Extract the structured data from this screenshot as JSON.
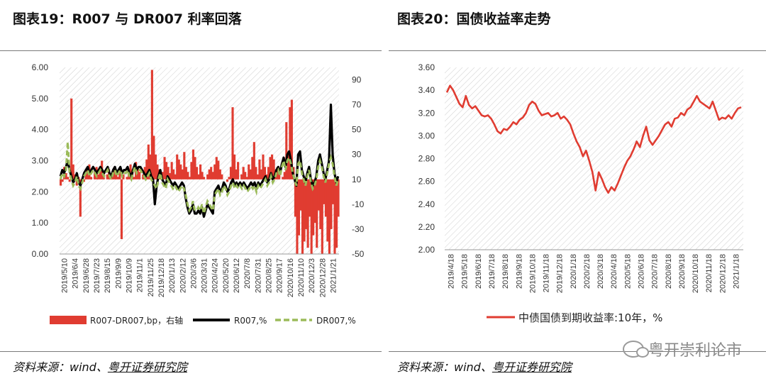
{
  "left_panel": {
    "title": "图表19：R007 与 DR007 利率回落",
    "source_prefix": "资料来源：wind、",
    "source_institution": "粤开证券研究院"
  },
  "right_panel": {
    "title": "图表20：国债收益率走势",
    "source_prefix": "资料来源：wind、",
    "source_institution": "粤开证券研究院"
  },
  "watermark": {
    "text": "粤开崇利论市",
    "icon": "wechat-icon"
  },
  "chart_data": [
    {
      "type": "line",
      "note": "combined chart: red bars on right axis, two lines on left axis",
      "x_ticks": [
        "2019/5/10",
        "2019/6/4",
        "2019/6/28",
        "2019/7/23",
        "2019/8/15",
        "2019/9/9",
        "2019/10/9",
        "2019/11/1",
        "2019/11/25",
        "2019/12/18",
        "2020/1/13",
        "2020/2/12",
        "2020/3/6",
        "2020/3/31",
        "2020/4/24",
        "2020/5/20",
        "2020/6/12",
        "2020/7/8",
        "2020/7/31",
        "2020/8/25",
        "2020/9/17",
        "2020/10/16",
        "2020/11/10",
        "2020/12/3",
        "2020/12/28",
        "2021/1/21"
      ],
      "y_left": {
        "ticks": [
          "0.00",
          "1.00",
          "2.00",
          "3.00",
          "4.00",
          "5.00",
          "6.00"
        ],
        "lim": [
          0,
          6
        ]
      },
      "y_right": {
        "ticks": [
          "-50",
          "-30",
          "-10",
          "10",
          "30",
          "50",
          "70",
          "90"
        ],
        "lim": [
          -50,
          100
        ]
      },
      "series": [
        {
          "name": "R007-DR007,bp，右轴",
          "axis": "right",
          "style": "bar",
          "color": "#E03C31",
          "values": [
            5,
            8,
            20,
            15,
            12,
            8,
            75,
            22,
            14,
            5,
            12,
            -20,
            10,
            8,
            15,
            18,
            22,
            12,
            10,
            16,
            20,
            14,
            18,
            25,
            16,
            10,
            14,
            18,
            12,
            16,
            20,
            15,
            12,
            18,
            -38,
            14,
            10,
            12,
            16,
            22,
            18,
            12,
            24,
            20,
            16,
            10,
            14,
            20,
            26,
            38,
            30,
            98,
            45,
            30,
            22,
            18,
            14,
            16,
            28,
            24,
            20,
            15,
            24,
            18,
            14,
            30,
            26,
            22,
            18,
            32,
            20,
            16,
            12,
            24,
            34,
            28,
            20,
            14,
            22,
            16,
            12,
            10,
            14,
            18,
            20,
            16,
            22,
            28,
            25,
            18,
            14,
            10,
            10,
            8,
            12,
            20,
            68,
            30,
            18,
            24,
            10,
            14,
            20,
            16,
            12,
            22,
            18,
            28,
            40,
            20,
            14,
            26,
            18,
            30,
            20,
            14,
            20,
            28,
            30,
            26,
            18,
            20,
            14,
            10,
            12,
            16,
            56,
            30,
            68,
            74,
            20,
            -20,
            -50,
            -35,
            -15,
            -50,
            -40,
            -30,
            -45,
            -20,
            -50,
            -35,
            -25,
            -45,
            -15,
            -30,
            -50,
            -10,
            -20,
            -40,
            -50,
            -30,
            -10,
            -50,
            -45,
            -20
          ]
        },
        {
          "name": "R007,%",
          "axis": "left",
          "style": "line",
          "color": "#000000",
          "values": [
            2.5,
            2.7,
            2.6,
            2.8,
            3.0,
            2.7,
            2.5,
            2.3,
            2.4,
            2.6,
            2.3,
            2.2,
            2.4,
            2.6,
            2.7,
            2.8,
            2.6,
            2.7,
            2.8,
            2.7,
            2.6,
            2.7,
            2.8,
            2.7,
            2.6,
            2.7,
            2.8,
            2.6,
            2.5,
            2.7,
            2.8,
            2.6,
            2.7,
            2.8,
            2.6,
            2.7,
            2.7,
            2.8,
            2.6,
            2.5,
            2.7,
            2.9,
            2.7,
            2.8,
            2.8,
            2.7,
            2.6,
            2.5,
            2.6,
            2.7,
            2.5,
            2.4,
            1.6,
            2.2,
            2.5,
            2.7,
            2.4,
            2.3,
            2.2,
            2.5,
            2.4,
            2.3,
            2.2,
            2.3,
            2.2,
            2.1,
            2.2,
            2.3,
            2.2,
            1.8,
            1.5,
            1.3,
            1.4,
            1.6,
            1.3,
            1.3,
            1.4,
            1.3,
            1.5,
            1.2,
            1.4,
            1.6,
            1.5,
            1.4,
            1.3,
            2.0,
            2.1,
            2.2,
            2.0,
            2.1,
            2.3,
            2.2,
            2.0,
            2.1,
            2.3,
            2.4,
            2.2,
            2.3,
            2.2,
            2.3,
            2.2,
            2.3,
            2.2,
            2.1,
            2.2,
            2.3,
            2.2,
            2.3,
            2.1,
            2.3,
            2.2,
            2.3,
            2.4,
            2.5,
            2.3,
            2.4,
            2.6,
            2.4,
            2.5,
            2.7,
            2.8,
            2.6,
            2.9,
            3.1,
            2.8,
            3.2,
            3.3,
            3.0,
            2.6,
            2.4,
            2.2,
            3.2,
            3.3,
            2.7,
            2.5,
            2.3,
            2.6,
            2.8,
            2.4,
            2.2,
            2.3,
            2.5,
            3.0,
            3.2,
            2.9,
            2.6,
            2.4,
            2.7,
            3.0,
            4.8,
            3.2,
            2.6,
            2.3,
            2.5
          ]
        },
        {
          "name": "DR007,%",
          "axis": "left",
          "style": "dashed",
          "color": "#9BBB59",
          "values": [
            2.4,
            2.6,
            2.5,
            2.7,
            3.6,
            2.6,
            2.4,
            2.2,
            2.3,
            2.5,
            2.2,
            2.1,
            2.3,
            2.5,
            2.6,
            2.7,
            2.5,
            2.6,
            2.7,
            2.6,
            2.5,
            2.6,
            2.7,
            2.6,
            2.5,
            2.6,
            2.7,
            2.5,
            2.4,
            2.6,
            2.7,
            2.5,
            2.6,
            2.7,
            2.5,
            2.6,
            2.6,
            2.7,
            2.5,
            2.4,
            2.6,
            2.8,
            2.6,
            2.7,
            2.7,
            2.6,
            2.5,
            2.4,
            2.5,
            2.6,
            2.4,
            2.3,
            2.2,
            2.1,
            2.4,
            2.6,
            2.3,
            2.2,
            2.1,
            2.4,
            2.3,
            2.2,
            2.1,
            2.2,
            2.1,
            2.0,
            2.1,
            2.2,
            2.1,
            1.9,
            1.6,
            1.4,
            1.5,
            1.7,
            1.4,
            1.4,
            1.5,
            1.4,
            1.6,
            1.3,
            1.5,
            1.7,
            1.6,
            1.5,
            1.4,
            1.9,
            2.0,
            2.1,
            1.9,
            2.0,
            2.2,
            2.1,
            1.9,
            2.0,
            2.2,
            2.3,
            2.1,
            2.2,
            2.1,
            2.2,
            2.1,
            2.2,
            2.1,
            2.0,
            2.1,
            2.2,
            2.1,
            2.2,
            2.0,
            2.2,
            2.1,
            2.2,
            2.3,
            2.4,
            2.2,
            2.3,
            2.5,
            2.3,
            2.4,
            2.6,
            2.7,
            2.5,
            2.8,
            3.0,
            2.7,
            3.0,
            3.1,
            2.9,
            2.6,
            2.4,
            2.2,
            2.9,
            3.0,
            2.6,
            2.4,
            2.2,
            2.5,
            2.7,
            2.3,
            2.1,
            2.2,
            2.4,
            2.8,
            3.0,
            2.8,
            2.5,
            2.3,
            2.6,
            2.9,
            3.1,
            2.9,
            2.5,
            2.2,
            2.4
          ]
        }
      ]
    },
    {
      "type": "line",
      "x_ticks": [
        "2019/4/18",
        "2019/5/18",
        "2019/6/18",
        "2019/7/18",
        "2019/8/18",
        "2019/9/18",
        "2019/10/18",
        "2019/11/18",
        "2019/12/18",
        "2020/1/18",
        "2020/2/18",
        "2020/3/18",
        "2020/4/18",
        "2020/5/18",
        "2020/6/18",
        "2020/7/18",
        "2020/8/18",
        "2020/9/18",
        "2020/10/18",
        "2020/11/18",
        "2020/12/18",
        "2021/1/18"
      ],
      "y": {
        "ticks": [
          "2.00",
          "2.20",
          "2.40",
          "2.60",
          "2.80",
          "3.00",
          "3.20",
          "3.40",
          "3.60"
        ],
        "lim": [
          2.0,
          3.6
        ]
      },
      "series": [
        {
          "name": "中债国债到期收益率:10年，%",
          "color": "#E03C31",
          "values": [
            3.38,
            3.44,
            3.4,
            3.34,
            3.28,
            3.25,
            3.35,
            3.27,
            3.24,
            3.26,
            3.22,
            3.18,
            3.17,
            3.18,
            3.15,
            3.1,
            3.04,
            3.02,
            3.06,
            3.05,
            3.08,
            3.12,
            3.1,
            3.14,
            3.16,
            3.2,
            3.27,
            3.3,
            3.28,
            3.22,
            3.18,
            3.19,
            3.2,
            3.17,
            3.18,
            3.2,
            3.15,
            3.17,
            3.14,
            3.1,
            3.02,
            2.95,
            2.9,
            2.82,
            2.87,
            2.78,
            2.68,
            2.52,
            2.68,
            2.62,
            2.55,
            2.5,
            2.55,
            2.52,
            2.58,
            2.65,
            2.72,
            2.78,
            2.82,
            2.88,
            2.95,
            2.9,
            3.0,
            3.08,
            2.96,
            2.92,
            2.96,
            3.0,
            3.05,
            3.1,
            3.12,
            3.08,
            3.15,
            3.16,
            3.2,
            3.18,
            3.23,
            3.25,
            3.3,
            3.35,
            3.3,
            3.28,
            3.26,
            3.24,
            3.3,
            3.22,
            3.14,
            3.16,
            3.15,
            3.18,
            3.15,
            3.2,
            3.24,
            3.25
          ]
        }
      ]
    }
  ]
}
